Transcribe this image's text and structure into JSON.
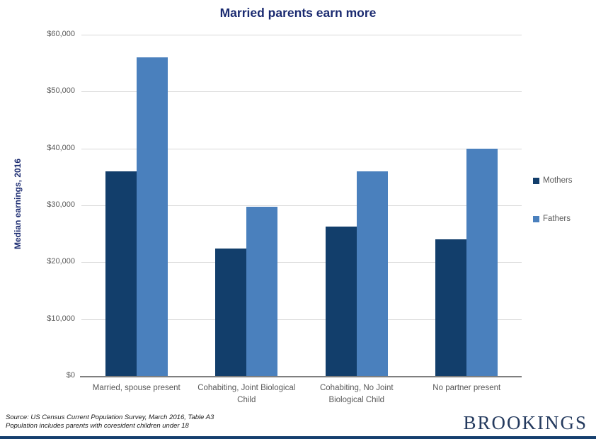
{
  "title": "Married parents earn more",
  "source": {
    "line1": "Source: US Census Current Population Survey, March 2016, Table A3",
    "line2": "Population includes parents with coresident children under 18"
  },
  "logo": "BROOKINGS",
  "colors": {
    "mothers_bar": "#123e6b",
    "fathers_bar": "#4a80bd",
    "gridline": "#d9d9d9",
    "axis_line": "#7f7f7f",
    "tick_text": "#595959",
    "navy_text": "#1a2a70",
    "logo_text": "#243a5e",
    "footer_bar": "#16406f"
  },
  "chart_data": {
    "type": "bar",
    "title": "Married parents earn more",
    "xlabel": "",
    "ylabel": "Median earnings, 2016",
    "ylim": [
      0,
      60000
    ],
    "ytick_interval": 10000,
    "ytick_labels": [
      "$0",
      "$10,000",
      "$20,000",
      "$30,000",
      "$40,000",
      "$50,000",
      "$60,000"
    ],
    "grid": true,
    "legend_position": "right",
    "categories": [
      "Married, spouse present",
      "Cohabiting, Joint Biological Child",
      "Cohabiting, No Joint Biological Child",
      "No partner present"
    ],
    "series": [
      {
        "name": "Mothers",
        "color": "#123e6b",
        "values": [
          36000,
          22400,
          26300,
          24000
        ]
      },
      {
        "name": "Fathers",
        "color": "#4a80bd",
        "values": [
          56000,
          29700,
          36000,
          40000
        ]
      }
    ]
  }
}
